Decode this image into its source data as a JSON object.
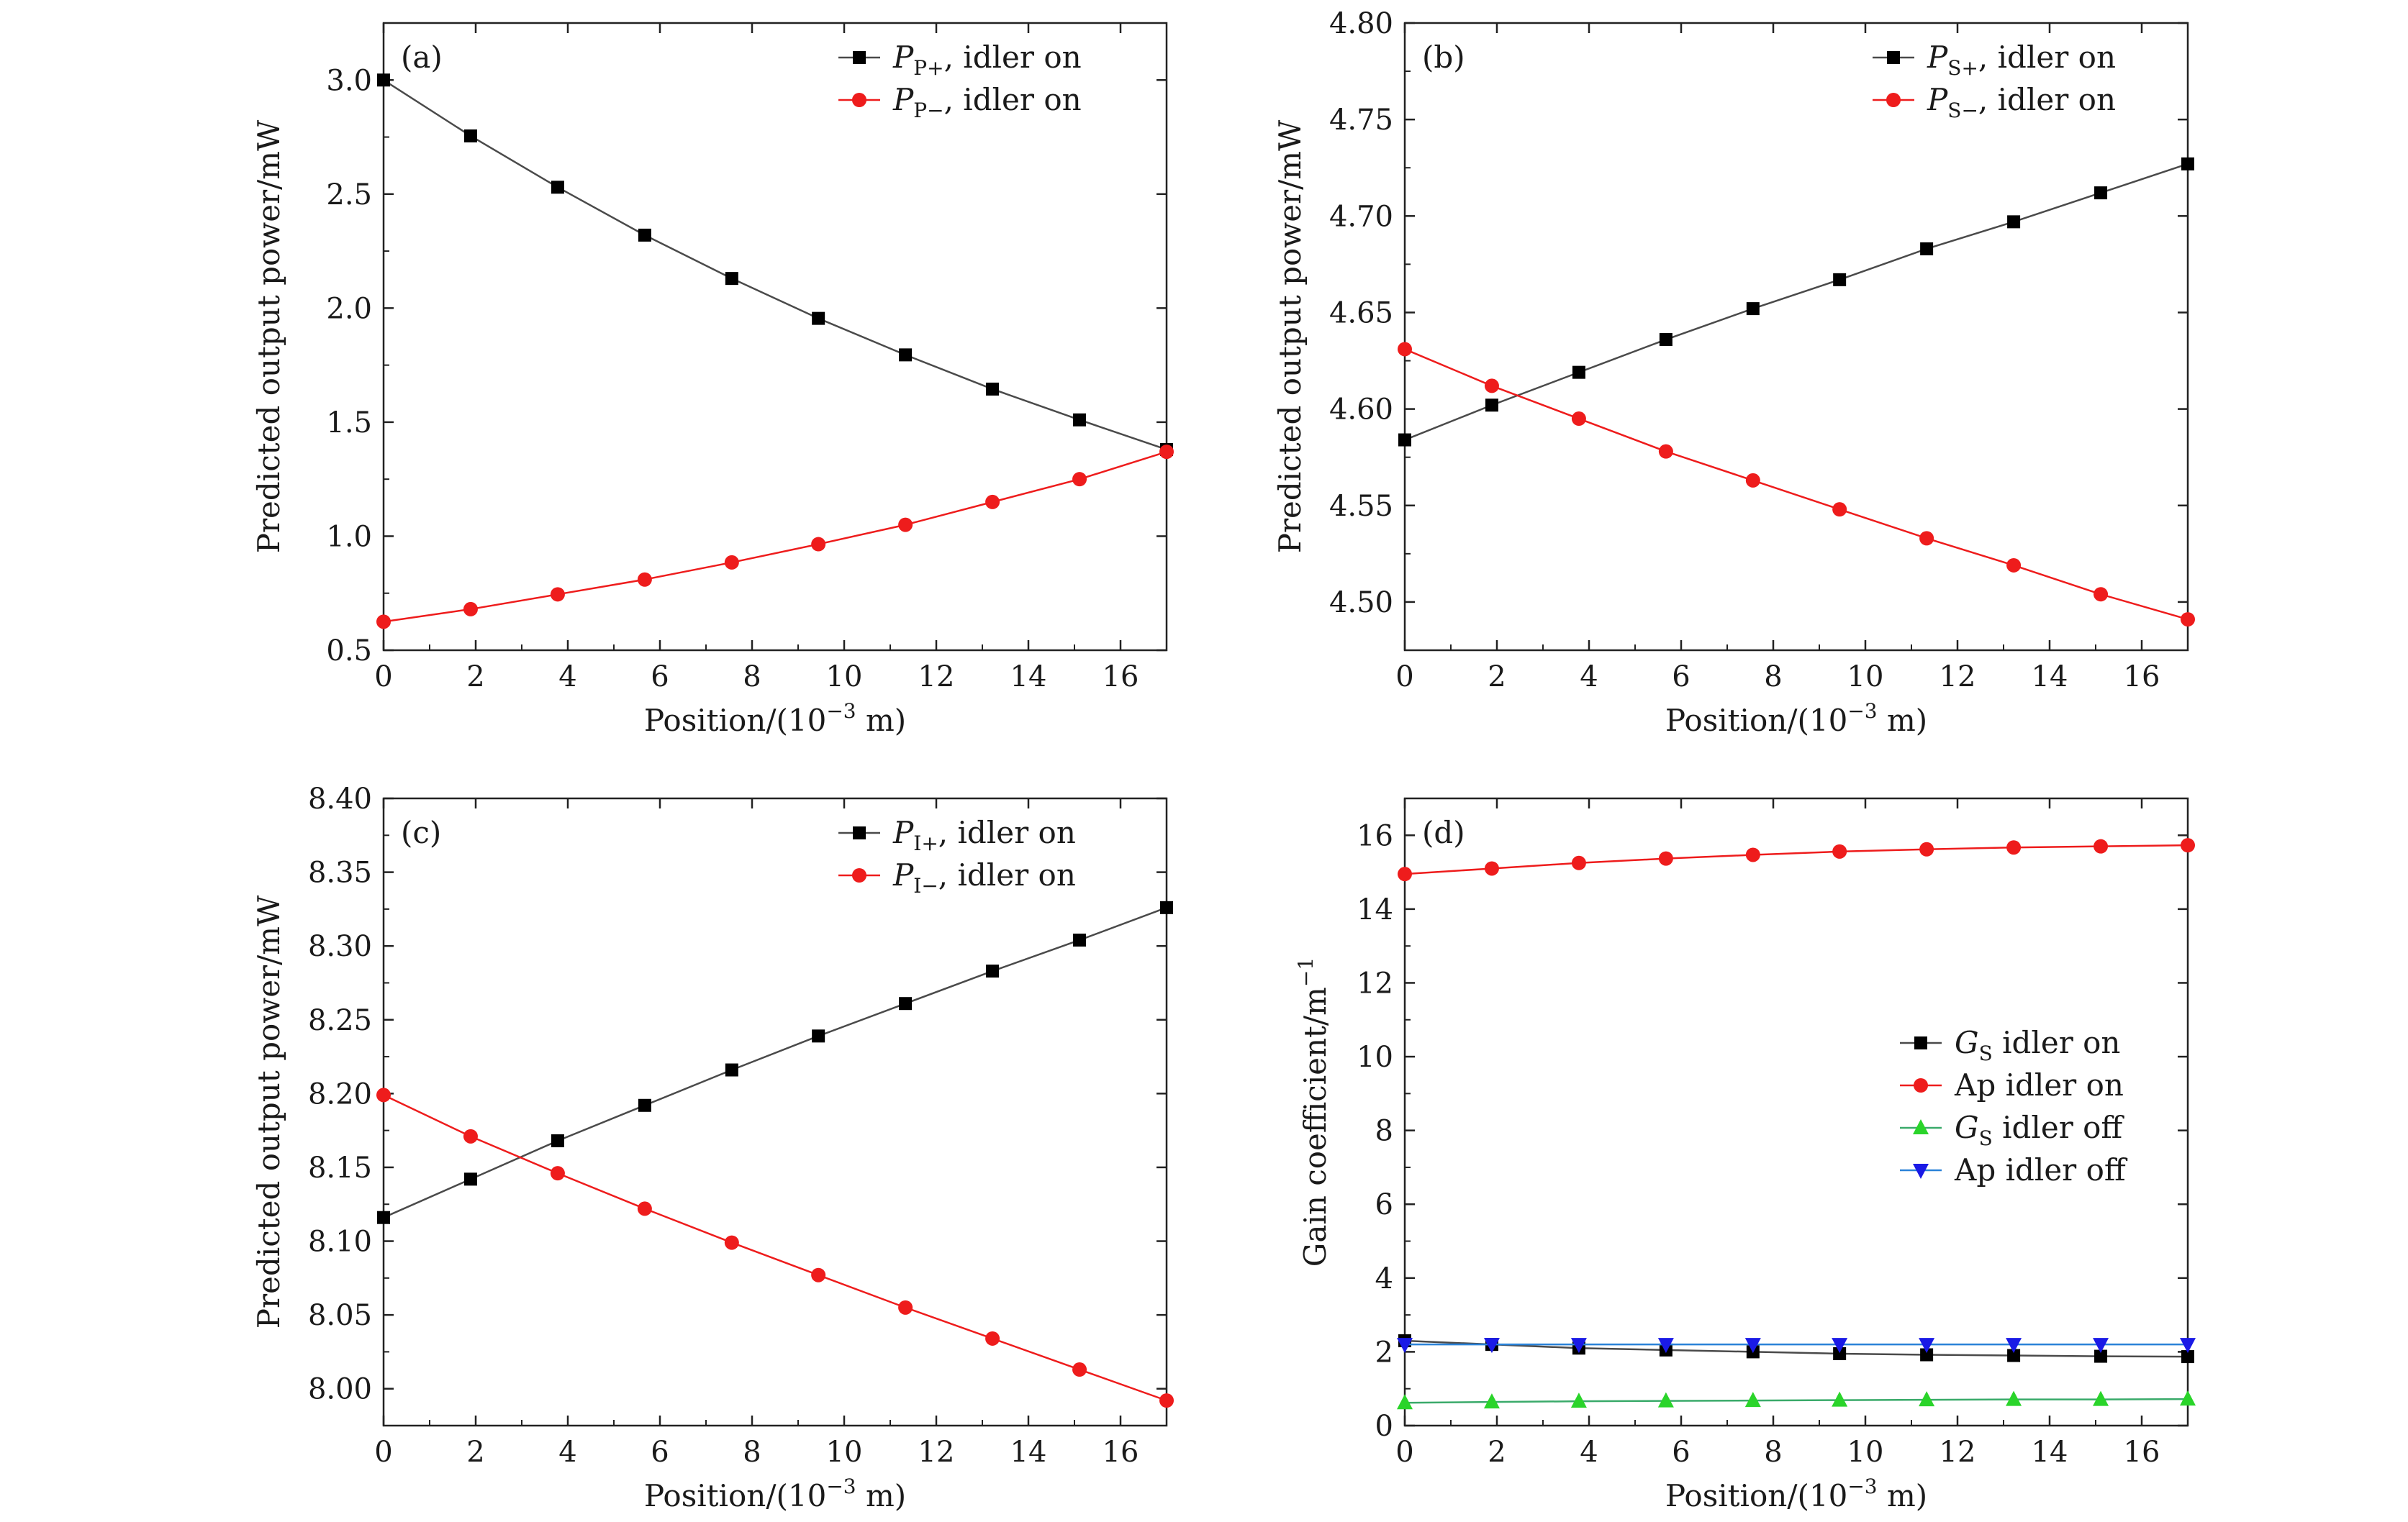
{
  "figure": {
    "xlabel_main": "Position/(10",
    "xlabel_exp": "−3",
    "xlabel_tail": " m)"
  },
  "colors": {
    "black_series": "#000000",
    "black_line": "#4a4a4a",
    "red": "#ee1c1c",
    "green": "#2ad42a",
    "green_line": "#3aaa6a",
    "blue": "#1a1ae6",
    "blue_line": "#2a82d8"
  },
  "chart_data": [
    {
      "panel": "(a)",
      "type": "line",
      "ylabel": "Predicted output power/mW",
      "xlim": [
        0,
        17
      ],
      "ylim": [
        0.5,
        3.25
      ],
      "xticks": [
        "0",
        "2",
        "4",
        "6",
        "8",
        "10",
        "12",
        "14",
        "16"
      ],
      "yticks": [
        "0.5",
        "1.0",
        "1.5",
        "2.0",
        "2.5",
        "3.0"
      ],
      "ytick_values": [
        0.5,
        1.0,
        1.5,
        2.0,
        2.5,
        3.0
      ],
      "x": [
        0,
        1.89,
        3.78,
        5.67,
        7.56,
        9.44,
        11.33,
        13.22,
        15.11,
        17
      ],
      "series": [
        {
          "name": "P",
          "sub": "P+",
          "suffix": ", idler on",
          "color": "#000000",
          "line": "#4a4a4a",
          "marker": "square",
          "values": [
            3.0,
            2.755,
            2.53,
            2.32,
            2.13,
            1.955,
            1.795,
            1.645,
            1.51,
            1.38
          ]
        },
        {
          "name": "P",
          "sub": "P−",
          "suffix": ", idler on",
          "color": "#ee1c1c",
          "line": "#ee1c1c",
          "marker": "circle",
          "values": [
            0.625,
            0.68,
            0.745,
            0.81,
            0.885,
            0.965,
            1.05,
            1.15,
            1.25,
            1.37
          ]
        }
      ]
    },
    {
      "panel": "(b)",
      "type": "line",
      "ylabel": "Predicted output power/mW",
      "xlim": [
        0,
        17
      ],
      "ylim": [
        4.475,
        4.8
      ],
      "xticks": [
        "0",
        "2",
        "4",
        "6",
        "8",
        "10",
        "12",
        "14",
        "16"
      ],
      "yticks": [
        "4.50",
        "4.55",
        "4.60",
        "4.65",
        "4.70",
        "4.75",
        "4.80"
      ],
      "ytick_values": [
        4.5,
        4.55,
        4.6,
        4.65,
        4.7,
        4.75,
        4.8
      ],
      "x": [
        0,
        1.89,
        3.78,
        5.67,
        7.56,
        9.44,
        11.33,
        13.22,
        15.11,
        17
      ],
      "series": [
        {
          "name": "P",
          "sub": "S+",
          "suffix": ", idler on",
          "color": "#000000",
          "line": "#4a4a4a",
          "marker": "square",
          "values": [
            4.584,
            4.602,
            4.619,
            4.636,
            4.652,
            4.667,
            4.683,
            4.697,
            4.712,
            4.727
          ]
        },
        {
          "name": "P",
          "sub": "S−",
          "suffix": ", idler on",
          "color": "#ee1c1c",
          "line": "#ee1c1c",
          "marker": "circle",
          "values": [
            4.631,
            4.612,
            4.595,
            4.578,
            4.563,
            4.548,
            4.533,
            4.519,
            4.504,
            4.491
          ]
        }
      ]
    },
    {
      "panel": "(c)",
      "type": "line",
      "ylabel": "Predicted output power/mW",
      "xlim": [
        0,
        17
      ],
      "ylim": [
        7.975,
        8.4
      ],
      "xticks": [
        "0",
        "2",
        "4",
        "6",
        "8",
        "10",
        "12",
        "14",
        "16"
      ],
      "yticks": [
        "8.00",
        "8.05",
        "8.10",
        "8.15",
        "8.20",
        "8.25",
        "8.30",
        "8.35",
        "8.40"
      ],
      "ytick_values": [
        8.0,
        8.05,
        8.1,
        8.15,
        8.2,
        8.25,
        8.3,
        8.35,
        8.4
      ],
      "x": [
        0,
        1.89,
        3.78,
        5.67,
        7.56,
        9.44,
        11.33,
        13.22,
        15.11,
        17
      ],
      "series": [
        {
          "name": "P",
          "sub": "I+",
          "suffix": ", idler on",
          "color": "#000000",
          "line": "#4a4a4a",
          "marker": "square",
          "values": [
            8.116,
            8.142,
            8.168,
            8.192,
            8.216,
            8.239,
            8.261,
            8.283,
            8.304,
            8.326
          ]
        },
        {
          "name": "P",
          "sub": "I−",
          "suffix": ", idler on",
          "color": "#ee1c1c",
          "line": "#ee1c1c",
          "marker": "circle",
          "values": [
            8.199,
            8.171,
            8.146,
            8.122,
            8.099,
            8.077,
            8.055,
            8.034,
            8.013,
            7.992
          ]
        }
      ]
    },
    {
      "panel": "(d)",
      "type": "line",
      "ylabel": "Gain coefficient/m",
      "ylabel_exp": "−1",
      "xlim": [
        0,
        17
      ],
      "ylim": [
        0,
        17
      ],
      "xticks": [
        "0",
        "2",
        "4",
        "6",
        "8",
        "10",
        "12",
        "14",
        "16"
      ],
      "yticks": [
        "0",
        "2",
        "4",
        "6",
        "8",
        "10",
        "12",
        "14",
        "16"
      ],
      "ytick_values": [
        0,
        2,
        4,
        6,
        8,
        10,
        12,
        14,
        16
      ],
      "x": [
        0,
        1.89,
        3.78,
        5.67,
        7.56,
        9.44,
        11.33,
        13.22,
        15.11,
        17
      ],
      "series": [
        {
          "name": "G",
          "sub": "S",
          "suffix": " idler on",
          "color": "#000000",
          "line": "#4a4a4a",
          "marker": "square",
          "values": [
            2.3,
            2.2,
            2.1,
            2.05,
            2.0,
            1.95,
            1.92,
            1.9,
            1.88,
            1.87
          ]
        },
        {
          "name": "Ap idler on",
          "sub": "",
          "suffix": "",
          "color": "#ee1c1c",
          "line": "#ee1c1c",
          "marker": "circle",
          "values": [
            14.95,
            15.1,
            15.25,
            15.37,
            15.47,
            15.56,
            15.62,
            15.67,
            15.7,
            15.73
          ]
        },
        {
          "name": "G",
          "sub": "S",
          "suffix": " idler off",
          "color": "#2ad42a",
          "line": "#3aaa6a",
          "marker": "triangle-up",
          "values": [
            0.62,
            0.64,
            0.66,
            0.67,
            0.68,
            0.69,
            0.7,
            0.71,
            0.71,
            0.72
          ]
        },
        {
          "name": "Ap idler off",
          "sub": "",
          "suffix": "",
          "color": "#1a1ae6",
          "line": "#2a82d8",
          "marker": "triangle-down",
          "values": [
            2.2,
            2.2,
            2.2,
            2.2,
            2.2,
            2.2,
            2.2,
            2.2,
            2.2,
            2.2
          ]
        }
      ]
    }
  ]
}
